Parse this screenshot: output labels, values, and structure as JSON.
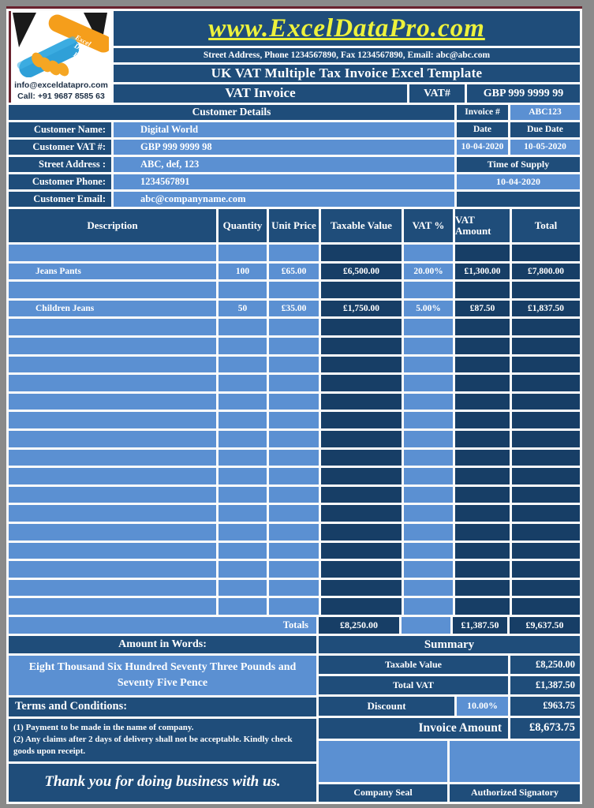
{
  "colors": {
    "page_bg": "#8a8a8a",
    "navy": "#1F4D7A",
    "dark_cell": "#173E66",
    "light_blue": "#5B90D2",
    "website_yellow": "#edf23c",
    "maroon_edge": "#69222e",
    "gridline": "#fbfbfb"
  },
  "logo": {
    "email": "info@exceldatapro.com",
    "phone": "Call: +91 9687 8585 63",
    "brand": "Excel Data Pro"
  },
  "header": {
    "website": "www.ExcelDataPro.com",
    "address_line": "Street Address, Phone 1234567890, Fax 1234567890, Email: abc@abc.com",
    "template_title": "UK VAT Multiple Tax Invoice Excel Template",
    "invoice_title": "VAT Invoice",
    "vat_label": "VAT#",
    "vat_number": "GBP 999 9999 99"
  },
  "customer": {
    "section_title": "Customer Details",
    "invoice_no_label": "Invoice #",
    "invoice_no": "ABC123",
    "name_label": "Customer Name:",
    "name": "Digital World",
    "vat_label": "Customer VAT #:",
    "vat": "GBP 999 9999 98",
    "address_label": "Street Address :",
    "address": "ABC, def, 123",
    "phone_label": "Customer Phone:",
    "phone": "1234567891",
    "email_label": "Customer Email:",
    "email": "abc@companyname.com",
    "date_label": "Date",
    "due_date_label": "Due Date",
    "date": "10-04-2020",
    "due_date": "10-05-2020",
    "time_of_supply_label": "Time of Supply",
    "time_of_supply": "10-04-2020"
  },
  "items_table": {
    "columns": [
      "Description",
      "Quantity",
      "Unit Price",
      "Taxable Value",
      "VAT %",
      "VAT Amount",
      "Total"
    ],
    "rows": [
      {
        "description": "",
        "quantity": "",
        "unit_price": "",
        "taxable_value": "",
        "vat_pct": "",
        "vat_amount": "",
        "total": ""
      },
      {
        "description": "Jeans Pants",
        "quantity": "100",
        "unit_price": "£65.00",
        "taxable_value": "£6,500.00",
        "vat_pct": "20.00%",
        "vat_amount": "£1,300.00",
        "total": "£7,800.00"
      },
      {
        "description": "",
        "quantity": "",
        "unit_price": "",
        "taxable_value": "",
        "vat_pct": "",
        "vat_amount": "",
        "total": ""
      },
      {
        "description": "Children Jeans",
        "quantity": "50",
        "unit_price": "£35.00",
        "taxable_value": "£1,750.00",
        "vat_pct": "5.00%",
        "vat_amount": "£87.50",
        "total": "£1,837.50"
      },
      {
        "description": "",
        "quantity": "",
        "unit_price": "",
        "taxable_value": "",
        "vat_pct": "",
        "vat_amount": "",
        "total": ""
      },
      {
        "description": "",
        "quantity": "",
        "unit_price": "",
        "taxable_value": "",
        "vat_pct": "",
        "vat_amount": "",
        "total": ""
      },
      {
        "description": "",
        "quantity": "",
        "unit_price": "",
        "taxable_value": "",
        "vat_pct": "",
        "vat_amount": "",
        "total": ""
      },
      {
        "description": "",
        "quantity": "",
        "unit_price": "",
        "taxable_value": "",
        "vat_pct": "",
        "vat_amount": "",
        "total": ""
      },
      {
        "description": "",
        "quantity": "",
        "unit_price": "",
        "taxable_value": "",
        "vat_pct": "",
        "vat_amount": "",
        "total": ""
      },
      {
        "description": "",
        "quantity": "",
        "unit_price": "",
        "taxable_value": "",
        "vat_pct": "",
        "vat_amount": "",
        "total": ""
      },
      {
        "description": "",
        "quantity": "",
        "unit_price": "",
        "taxable_value": "",
        "vat_pct": "",
        "vat_amount": "",
        "total": ""
      },
      {
        "description": "",
        "quantity": "",
        "unit_price": "",
        "taxable_value": "",
        "vat_pct": "",
        "vat_amount": "",
        "total": ""
      },
      {
        "description": "",
        "quantity": "",
        "unit_price": "",
        "taxable_value": "",
        "vat_pct": "",
        "vat_amount": "",
        "total": ""
      },
      {
        "description": "",
        "quantity": "",
        "unit_price": "",
        "taxable_value": "",
        "vat_pct": "",
        "vat_amount": "",
        "total": ""
      },
      {
        "description": "",
        "quantity": "",
        "unit_price": "",
        "taxable_value": "",
        "vat_pct": "",
        "vat_amount": "",
        "total": ""
      },
      {
        "description": "",
        "quantity": "",
        "unit_price": "",
        "taxable_value": "",
        "vat_pct": "",
        "vat_amount": "",
        "total": ""
      },
      {
        "description": "",
        "quantity": "",
        "unit_price": "",
        "taxable_value": "",
        "vat_pct": "",
        "vat_amount": "",
        "total": ""
      },
      {
        "description": "",
        "quantity": "",
        "unit_price": "",
        "taxable_value": "",
        "vat_pct": "",
        "vat_amount": "",
        "total": ""
      },
      {
        "description": "",
        "quantity": "",
        "unit_price": "",
        "taxable_value": "",
        "vat_pct": "",
        "vat_amount": "",
        "total": ""
      },
      {
        "description": "",
        "quantity": "",
        "unit_price": "",
        "taxable_value": "",
        "vat_pct": "",
        "vat_amount": "",
        "total": ""
      }
    ],
    "totals_label": "Totals",
    "totals": {
      "taxable_value": "£8,250.00",
      "vat_amount": "£1,387.50",
      "total": "£9,637.50"
    }
  },
  "amount_in_words": {
    "label": "Amount in Words:",
    "text": "Eight Thousand Six Hundred Seventy Three Pounds and Seventy Five Pence"
  },
  "summary": {
    "title": "Summary",
    "taxable_label": "Taxable Value",
    "taxable_value": "£8,250.00",
    "total_vat_label": "Total VAT",
    "total_vat": "£1,387.50",
    "discount_label": "Discount",
    "discount_pct": "10.00%",
    "discount_value": "£963.75",
    "invoice_amount_label": "Invoice Amount",
    "invoice_amount": "£8,673.75",
    "company_seal_label": "Company Seal",
    "authorized_signatory_label": "Authorized Signatory"
  },
  "terms": {
    "label": "Terms and Conditions:",
    "lines": [
      "(1) Payment to be made in the name of company.",
      "(2) Any claims after 2 days of delivery shall not be acceptable. Kindly check goods upon receipt."
    ]
  },
  "footer": {
    "thank_you": "Thank you for doing business with us."
  }
}
